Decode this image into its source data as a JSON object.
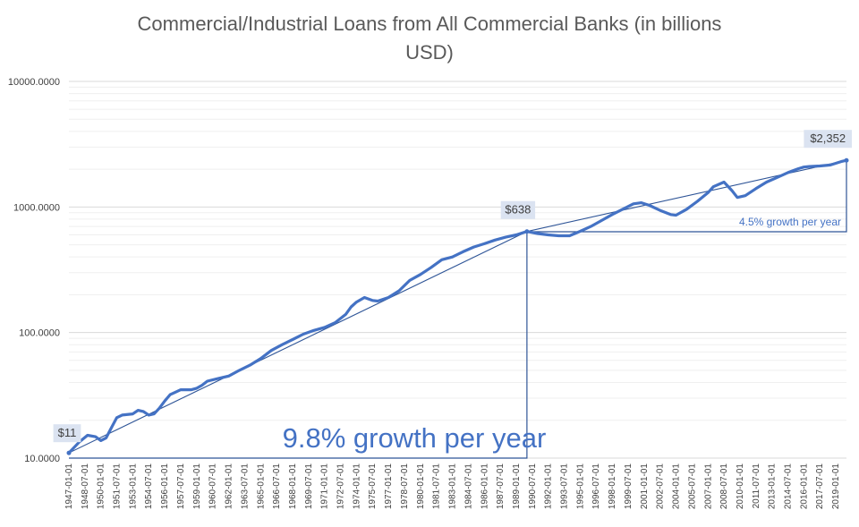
{
  "chart_data": {
    "type": "line",
    "title_lines": [
      "Commercial/Industrial Loans from All Commercial Banks (in billions",
      "USD)"
    ],
    "y_scale": "log",
    "ylim": [
      10,
      10000
    ],
    "y_ticks": [
      "10.0000",
      "100.0000",
      "1000.0000",
      "10000.0000"
    ],
    "x_range": [
      "1947-01-01",
      "2020-01-01"
    ],
    "x_ticks": [
      "1947-01-01",
      "1948-07-01",
      "1950-01-01",
      "1951-07-01",
      "1953-01-01",
      "1954-07-01",
      "1956-01-01",
      "1957-07-01",
      "1959-01-01",
      "1960-07-01",
      "1962-01-01",
      "1963-07-01",
      "1965-01-01",
      "1966-07-01",
      "1968-01-01",
      "1969-07-01",
      "1971-01-01",
      "1972-07-01",
      "1974-01-01",
      "1975-07-01",
      "1977-01-01",
      "1978-07-01",
      "1980-01-01",
      "1981-07-01",
      "1983-01-01",
      "1984-07-01",
      "1986-01-01",
      "1987-07-01",
      "1989-01-01",
      "1990-07-01",
      "1992-01-01",
      "1993-07-01",
      "1995-01-01",
      "1996-07-01",
      "1998-01-01",
      "1999-07-01",
      "2001-01-01",
      "2002-07-01",
      "2004-01-01",
      "2005-07-01",
      "2007-01-01",
      "2008-07-01",
      "2010-01-01",
      "2011-07-01",
      "2013-01-01",
      "2014-07-01",
      "2016-01-01",
      "2017-07-01",
      "2019-01-01"
    ],
    "gridlines": true,
    "series": [
      {
        "color": "#4472c4",
        "x": [
          "1947-01-01",
          "1948-01-01",
          "1948-10-01",
          "1949-07-01",
          "1950-01-01",
          "1950-07-01",
          "1951-01-01",
          "1951-07-01",
          "1952-01-01",
          "1953-01-01",
          "1953-07-01",
          "1954-01-01",
          "1954-07-01",
          "1955-01-01",
          "1955-07-01",
          "1956-01-01",
          "1956-07-01",
          "1957-01-01",
          "1957-07-01",
          "1958-07-01",
          "1959-01-01",
          "1959-07-01",
          "1960-01-01",
          "1961-01-01",
          "1962-01-01",
          "1963-01-01",
          "1964-01-01",
          "1965-01-01",
          "1966-01-01",
          "1967-01-01",
          "1968-01-01",
          "1969-01-01",
          "1970-01-01",
          "1971-01-01",
          "1972-01-01",
          "1973-01-01",
          "1973-07-01",
          "1974-01-01",
          "1974-10-01",
          "1975-07-01",
          "1976-01-01",
          "1977-01-01",
          "1978-01-01",
          "1979-01-01",
          "1980-01-01",
          "1981-01-01",
          "1982-01-01",
          "1983-01-01",
          "1984-01-01",
          "1985-01-01",
          "1986-01-01",
          "1987-01-01",
          "1988-01-01",
          "1989-01-01",
          "1990-01-01",
          "1991-01-01",
          "1992-01-01",
          "1993-01-01",
          "1994-01-01",
          "1995-01-01",
          "1996-01-01",
          "1997-01-01",
          "1998-01-01",
          "1999-01-01",
          "2000-01-01",
          "2000-10-01",
          "2001-07-01",
          "2002-07-01",
          "2003-07-01",
          "2004-01-01",
          "2005-01-01",
          "2006-01-01",
          "2007-01-01",
          "2007-07-01",
          "2008-07-01",
          "2009-04-01",
          "2009-10-01",
          "2010-07-01",
          "2011-07-01",
          "2012-07-01",
          "2013-07-01",
          "2014-07-01",
          "2015-07-01",
          "2016-01-01",
          "2016-07-01",
          "2017-07-01",
          "2018-07-01",
          "2019-07-01",
          "2020-01-01"
        ],
        "y": [
          11,
          13.5,
          15.2,
          14.8,
          13.8,
          14.5,
          17.5,
          21,
          22,
          22.5,
          24,
          23.5,
          22,
          22.5,
          25,
          28.5,
          32,
          33.5,
          35,
          35,
          36,
          38,
          41,
          43,
          45,
          50,
          55,
          62,
          72,
          80,
          88,
          97,
          104,
          110,
          120,
          140,
          160,
          175,
          190,
          180,
          178,
          190,
          215,
          260,
          290,
          330,
          380,
          400,
          440,
          480,
          510,
          545,
          575,
          600,
          638,
          615,
          600,
          590,
          590,
          640,
          700,
          780,
          870,
          960,
          1060,
          1080,
          1030,
          940,
          870,
          860,
          960,
          1110,
          1300,
          1450,
          1580,
          1350,
          1190,
          1230,
          1400,
          1580,
          1720,
          1880,
          2020,
          2080,
          2100,
          2120,
          2160,
          2300,
          2352
        ]
      }
    ],
    "trendlines": [
      {
        "from": [
          "1947-01-01",
          11
        ],
        "to": [
          "1990-01-01",
          638
        ],
        "label": "9.8% growth per year"
      },
      {
        "from": [
          "1990-01-01",
          638
        ],
        "to": [
          "2020-01-01",
          2352
        ],
        "label": "4.5% growth  per year"
      }
    ],
    "callouts": [
      {
        "x": "1947-01-01",
        "y": 11,
        "label": "$11"
      },
      {
        "x": "1990-01-01",
        "y": 638,
        "label": "$638"
      },
      {
        "x": "2020-01-01",
        "y": 2352,
        "label": "$2,352"
      }
    ]
  }
}
